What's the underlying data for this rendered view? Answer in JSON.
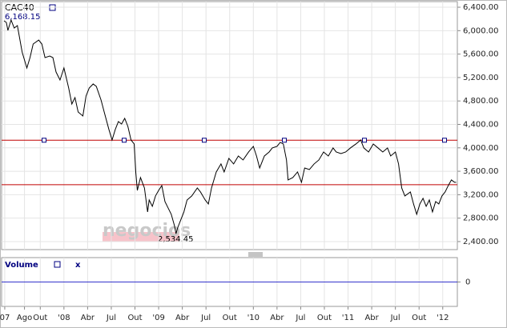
{
  "chart_data": [
    {
      "type": "line",
      "title": "CAC40",
      "annotations": [
        "6,168.15",
        "2,534.45"
      ],
      "watermark": "negocios",
      "xlim": [
        -7.9,
        49.85
      ],
      "ylim": [
        2263,
        6496
      ],
      "xticks": [
        {
          "value": -7.5,
          "label": "07"
        },
        {
          "value": -5,
          "label": "Ago"
        },
        {
          "value": -3,
          "label": "Out"
        },
        {
          "value": 0,
          "label": "'08"
        },
        {
          "value": 3,
          "label": "Abr"
        },
        {
          "value": 6,
          "label": "Jul"
        },
        {
          "value": 9,
          "label": "Out"
        },
        {
          "value": 12,
          "label": "'09"
        },
        {
          "value": 15,
          "label": "Abr"
        },
        {
          "value": 18,
          "label": "Jul"
        },
        {
          "value": 21,
          "label": "Out"
        },
        {
          "value": 24,
          "label": "'10"
        },
        {
          "value": 27,
          "label": "Abr"
        },
        {
          "value": 30,
          "label": "Jul"
        },
        {
          "value": 33,
          "label": "Out"
        },
        {
          "value": 36,
          "label": "'11"
        },
        {
          "value": 39,
          "label": "Abr"
        },
        {
          "value": 42,
          "label": "Jul"
        },
        {
          "value": 45,
          "label": "Out"
        },
        {
          "value": 48,
          "label": "'12"
        }
      ],
      "yticks": [
        {
          "value": 2400,
          "label": "2,400.00"
        },
        {
          "value": 2800,
          "label": "2,800.00"
        },
        {
          "value": 3200,
          "label": "3,200.00"
        },
        {
          "value": 3600,
          "label": "3,600.00"
        },
        {
          "value": 4000,
          "label": "4,000.00"
        },
        {
          "value": 4400,
          "label": "4,400.00"
        },
        {
          "value": 4800,
          "label": "4,800.00"
        },
        {
          "value": 5200,
          "label": "5,200.00"
        },
        {
          "value": 5600,
          "label": "5,600.00"
        },
        {
          "value": 6000,
          "label": "6,000.00"
        },
        {
          "value": 6400,
          "label": "6,400.00"
        }
      ],
      "grid": true,
      "reference_lines": [
        {
          "value": 4130,
          "color": "#c00000"
        },
        {
          "value": 3370,
          "color": "#c00000"
        }
      ],
      "series": [
        {
          "color": "#000000",
          "x": [
            -7.6,
            -7.3,
            -7.1,
            -6.7,
            -6.3,
            -5.9,
            -5.3,
            -4.7,
            -4.3,
            -3.9,
            -3.2,
            -2.8,
            -2.4,
            -1.8,
            -1.4,
            -1.0,
            -0.5,
            0,
            0.6,
            1.0,
            1.4,
            1.8,
            2.4,
            2.8,
            3.2,
            3.7,
            4.1,
            4.7,
            5.1,
            5.7,
            6.1,
            6.5,
            6.9,
            7.3,
            7.7,
            8.1,
            8.5,
            8.9,
            9.1,
            9.3,
            9.7,
            10.2,
            10.6,
            10.8,
            11.2,
            11.6,
            12.0,
            12.4,
            12.8,
            13.2,
            13.6,
            14.0,
            14.2,
            14.4,
            14.8,
            15.2,
            15.6,
            16.2,
            16.9,
            17.3,
            17.9,
            18.3,
            18.7,
            19.3,
            19.9,
            20.3,
            20.9,
            21.5,
            22.1,
            22.7,
            23.4,
            24.0,
            24.4,
            24.8,
            25.4,
            26.0,
            26.4,
            27.0,
            27.4,
            27.8,
            28.2,
            28.4,
            29.0,
            29.6,
            30.1,
            30.5,
            31.1,
            31.7,
            32.3,
            32.9,
            33.5,
            34.1,
            34.5,
            35.1,
            35.7,
            36.3,
            37.0,
            37.6,
            38.0,
            38.6,
            39.2,
            39.8,
            40.4,
            41.0,
            41.4,
            42.0,
            42.4,
            42.8,
            43.2,
            43.9,
            44.3,
            44.7,
            45.1,
            45.5,
            45.9,
            46.3,
            46.7,
            47.1,
            47.5,
            47.9,
            48.3,
            48.7,
            49.1,
            49.5,
            49.7
          ],
          "values": [
            6168.15,
            6141,
            6004,
            6182,
            6045,
            6086,
            5636,
            5363,
            5540,
            5772,
            5840,
            5772,
            5540,
            5567,
            5540,
            5294,
            5158,
            5363,
            5021,
            4748,
            4858,
            4612,
            4544,
            4885,
            5021,
            5090,
            5049,
            4817,
            4612,
            4312,
            4134,
            4312,
            4448,
            4407,
            4503,
            4366,
            4134,
            4066,
            3588,
            3274,
            3493,
            3315,
            2906,
            3110,
            3001,
            3179,
            3274,
            3356,
            3083,
            2974,
            2865,
            2673,
            2534.45,
            2632,
            2769,
            2906,
            3110,
            3179,
            3315,
            3247,
            3110,
            3042,
            3315,
            3588,
            3725,
            3588,
            3820,
            3725,
            3861,
            3793,
            3929,
            4025,
            3861,
            3656,
            3861,
            3929,
            3998,
            4025,
            4093,
            4066,
            3793,
            3452,
            3493,
            3588,
            3411,
            3656,
            3629,
            3725,
            3793,
            3929,
            3861,
            3998,
            3929,
            3902,
            3929,
            3998,
            4066,
            4134,
            3998,
            3929,
            4066,
            3998,
            3929,
            3998,
            3861,
            3929,
            3725,
            3315,
            3179,
            3247,
            3042,
            2865,
            3042,
            3138,
            3001,
            3110,
            2906,
            3083,
            3042,
            3179,
            3247,
            3356,
            3452,
            3411,
            3411
          ]
        }
      ]
    },
    {
      "type": "volume",
      "title": "Volume",
      "close_label": "x",
      "ylim": [
        -1,
        1
      ],
      "yticks": [
        0
      ],
      "color": "#3333cc"
    }
  ]
}
